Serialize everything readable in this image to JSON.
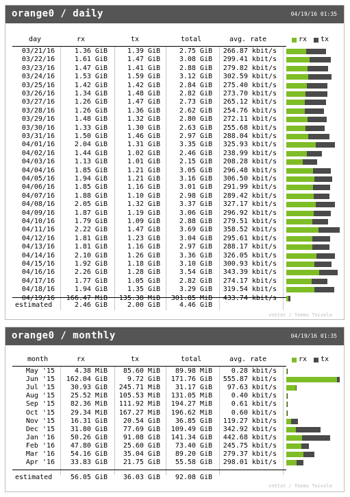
{
  "daily": {
    "title": "orange0 / daily",
    "date": "04/19/16 01:35",
    "columns": {
      "day": "day",
      "rx": "rx",
      "tx": "tx",
      "total": "total",
      "rate": "avg. rate"
    },
    "legend": {
      "rx": "rx",
      "tx": "tx"
    },
    "rows": [
      {
        "label": "03/21/16",
        "rx": "1.36 GiB",
        "tx": "1.39 GiB",
        "total": "2.75 GiB",
        "rate": "266.87 kbit/s"
      },
      {
        "label": "03/22/16",
        "rx": "1.61 GiB",
        "tx": "1.47 GiB",
        "total": "3.08 GiB",
        "rate": "299.41 kbit/s"
      },
      {
        "label": "03/23/16",
        "rx": "1.47 GiB",
        "tx": "1.41 GiB",
        "total": "2.88 GiB",
        "rate": "279.82 kbit/s"
      },
      {
        "label": "03/24/16",
        "rx": "1.53 GiB",
        "tx": "1.59 GiB",
        "total": "3.12 GiB",
        "rate": "302.59 kbit/s"
      },
      {
        "label": "03/25/16",
        "rx": "1.42 GiB",
        "tx": "1.42 GiB",
        "total": "2.84 GiB",
        "rate": "275.40 kbit/s"
      },
      {
        "label": "03/26/16",
        "rx": "1.34 GiB",
        "tx": "1.48 GiB",
        "total": "2.82 GiB",
        "rate": "273.70 kbit/s"
      },
      {
        "label": "03/27/16",
        "rx": "1.26 GiB",
        "tx": "1.47 GiB",
        "total": "2.73 GiB",
        "rate": "265.12 kbit/s"
      },
      {
        "label": "03/28/16",
        "rx": "1.26 GiB",
        "tx": "1.36 GiB",
        "total": "2.62 GiB",
        "rate": "254.76 kbit/s"
      },
      {
        "label": "03/29/16",
        "rx": "1.48 GiB",
        "tx": "1.32 GiB",
        "total": "2.80 GiB",
        "rate": "272.11 kbit/s"
      },
      {
        "label": "03/30/16",
        "rx": "1.33 GiB",
        "tx": "1.30 GiB",
        "total": "2.63 GiB",
        "rate": "255.68 kbit/s"
      },
      {
        "label": "03/31/16",
        "rx": "1.50 GiB",
        "tx": "1.46 GiB",
        "total": "2.97 GiB",
        "rate": "288.04 kbit/s"
      },
      {
        "label": "04/01/16",
        "rx": "2.04 GiB",
        "tx": "1.31 GiB",
        "total": "3.35 GiB",
        "rate": "325.93 kbit/s"
      },
      {
        "label": "04/02/16",
        "rx": "1.44 GiB",
        "tx": "1.02 GiB",
        "total": "2.46 GiB",
        "rate": "238.99 kbit/s"
      },
      {
        "label": "04/03/16",
        "rx": "1.13 GiB",
        "tx": "1.01 GiB",
        "total": "2.15 GiB",
        "rate": "208.28 kbit/s"
      },
      {
        "label": "04/04/16",
        "rx": "1.85 GiB",
        "tx": "1.21 GiB",
        "total": "3.05 GiB",
        "rate": "296.48 kbit/s"
      },
      {
        "label": "04/05/16",
        "rx": "1.94 GiB",
        "tx": "1.21 GiB",
        "total": "3.16 GiB",
        "rate": "306.50 kbit/s"
      },
      {
        "label": "04/06/16",
        "rx": "1.85 GiB",
        "tx": "1.16 GiB",
        "total": "3.01 GiB",
        "rate": "291.99 kbit/s"
      },
      {
        "label": "04/07/16",
        "rx": "1.88 GiB",
        "tx": "1.10 GiB",
        "total": "2.98 GiB",
        "rate": "289.42 kbit/s"
      },
      {
        "label": "04/08/16",
        "rx": "2.05 GiB",
        "tx": "1.32 GiB",
        "total": "3.37 GiB",
        "rate": "327.17 kbit/s"
      },
      {
        "label": "04/09/16",
        "rx": "1.87 GiB",
        "tx": "1.19 GiB",
        "total": "3.06 GiB",
        "rate": "296.92 kbit/s"
      },
      {
        "label": "04/10/16",
        "rx": "1.79 GiB",
        "tx": "1.09 GiB",
        "total": "2.88 GiB",
        "rate": "279.51 kbit/s"
      },
      {
        "label": "04/11/16",
        "rx": "2.22 GiB",
        "tx": "1.47 GiB",
        "total": "3.69 GiB",
        "rate": "358.52 kbit/s"
      },
      {
        "label": "04/12/16",
        "rx": "1.81 GiB",
        "tx": "1.23 GiB",
        "total": "3.04 GiB",
        "rate": "295.61 kbit/s"
      },
      {
        "label": "04/13/16",
        "rx": "1.81 GiB",
        "tx": "1.16 GiB",
        "total": "2.97 GiB",
        "rate": "288.17 kbit/s"
      },
      {
        "label": "04/14/16",
        "rx": "2.10 GiB",
        "tx": "1.26 GiB",
        "total": "3.36 GiB",
        "rate": "326.05 kbit/s"
      },
      {
        "label": "04/15/16",
        "rx": "1.92 GiB",
        "tx": "1.18 GiB",
        "total": "3.10 GiB",
        "rate": "300.93 kbit/s"
      },
      {
        "label": "04/16/16",
        "rx": "2.26 GiB",
        "tx": "1.28 GiB",
        "total": "3.54 GiB",
        "rate": "343.39 kbit/s"
      },
      {
        "label": "04/17/16",
        "rx": "1.77 GiB",
        "tx": "1.05 GiB",
        "total": "2.82 GiB",
        "rate": "274.17 kbit/s"
      },
      {
        "label": "04/18/16",
        "rx": "1.94 GiB",
        "tx": "1.35 GiB",
        "total": "3.29 GiB",
        "rate": "319.54 kbit/s"
      },
      {
        "label": "04/19/16",
        "rx": "166.47 MiB",
        "tx": "135.38 MiB",
        "total": "301.85 MiB",
        "rate": "433.74 kbit/s"
      }
    ],
    "bars": [
      [
        1.36,
        1.39
      ],
      [
        1.61,
        1.47
      ],
      [
        1.47,
        1.41
      ],
      [
        1.53,
        1.59
      ],
      [
        1.42,
        1.42
      ],
      [
        1.34,
        1.48
      ],
      [
        1.26,
        1.47
      ],
      [
        1.26,
        1.36
      ],
      [
        1.48,
        1.32
      ],
      [
        1.33,
        1.3
      ],
      [
        1.5,
        1.46
      ],
      [
        2.04,
        1.31
      ],
      [
        1.44,
        1.02
      ],
      [
        1.13,
        1.01
      ],
      [
        1.85,
        1.21
      ],
      [
        1.94,
        1.21
      ],
      [
        1.85,
        1.16
      ],
      [
        1.88,
        1.1
      ],
      [
        2.05,
        1.32
      ],
      [
        1.87,
        1.19
      ],
      [
        1.79,
        1.09
      ],
      [
        2.22,
        1.47
      ],
      [
        1.81,
        1.23
      ],
      [
        1.81,
        1.16
      ],
      [
        2.1,
        1.26
      ],
      [
        1.92,
        1.18
      ],
      [
        2.26,
        1.28
      ],
      [
        1.77,
        1.05
      ],
      [
        1.94,
        1.35
      ],
      [
        0.1626,
        0.1322
      ]
    ],
    "estimated": {
      "label": "estimated",
      "rx": "2.46 GiB",
      "tx": "2.00 GiB",
      "total": "4.46 GiB"
    },
    "credit": "vnStat / Teemu Toivola",
    "colors": {
      "rx": "#7ebd26",
      "tx": "#4a4a4a",
      "header": "#555555"
    }
  },
  "monthly": {
    "title": "orange0 / monthly",
    "date": "04/19/16 01:35",
    "columns": {
      "month": "month",
      "rx": "rx",
      "tx": "tx",
      "total": "total",
      "rate": "avg. rate"
    },
    "legend": {
      "rx": "rx",
      "tx": "tx"
    },
    "rows": [
      {
        "label": "May '15",
        "rx": "4.38 MiB",
        "tx": "85.60 MiB",
        "total": "89.98 MiB",
        "rate": "0.28 kbit/s"
      },
      {
        "label": "Jun '15",
        "rx": "162.04 GiB",
        "tx": "9.72 GiB",
        "total": "171.76 GiB",
        "rate": "555.87 kbit/s"
      },
      {
        "label": "Jul '15",
        "rx": "30.93 GiB",
        "tx": "245.71 MiB",
        "total": "31.17 GiB",
        "rate": "97.63 kbit/s"
      },
      {
        "label": "Aug '15",
        "rx": "25.52 MiB",
        "tx": "105.53 MiB",
        "total": "131.05 MiB",
        "rate": "0.40 kbit/s"
      },
      {
        "label": "Sep '15",
        "rx": "82.36 MiB",
        "tx": "111.92 MiB",
        "total": "194.27 MiB",
        "rate": "0.61 kbit/s"
      },
      {
        "label": "Oct '15",
        "rx": "29.34 MiB",
        "tx": "167.27 MiB",
        "total": "196.62 MiB",
        "rate": "0.60 kbit/s"
      },
      {
        "label": "Nov '15",
        "rx": "16.31 GiB",
        "tx": "20.54 GiB",
        "total": "36.85 GiB",
        "rate": "119.27 kbit/s"
      },
      {
        "label": "Dec '15",
        "rx": "31.80 GiB",
        "tx": "77.69 GiB",
        "total": "109.49 GiB",
        "rate": "342.92 kbit/s"
      },
      {
        "label": "Jan '16",
        "rx": "50.26 GiB",
        "tx": "91.08 GiB",
        "total": "141.34 GiB",
        "rate": "442.68 kbit/s"
      },
      {
        "label": "Feb '16",
        "rx": "47.80 GiB",
        "tx": "25.60 GiB",
        "total": "73.40 GiB",
        "rate": "245.75 kbit/s"
      },
      {
        "label": "Mar '16",
        "rx": "54.16 GiB",
        "tx": "35.04 GiB",
        "total": "89.20 GiB",
        "rate": "279.37 kbit/s"
      },
      {
        "label": "Apr '16",
        "rx": "33.83 GiB",
        "tx": "21.75 GiB",
        "total": "55.58 GiB",
        "rate": "298.01 kbit/s"
      }
    ],
    "bars": [
      [
        0.0043,
        0.0836
      ],
      [
        162.04,
        9.72
      ],
      [
        30.93,
        0.24
      ],
      [
        0.025,
        0.103
      ],
      [
        0.08,
        0.109
      ],
      [
        0.029,
        0.163
      ],
      [
        16.31,
        20.54
      ],
      [
        31.8,
        77.69
      ],
      [
        50.26,
        91.08
      ],
      [
        47.8,
        25.6
      ],
      [
        54.16,
        35.04
      ],
      [
        33.83,
        21.75
      ]
    ],
    "estimated": {
      "label": "estimated",
      "rx": "56.05 GiB",
      "tx": "36.03 GiB",
      "total": "92.08 GiB"
    },
    "credit": "vnStat / Teemu Toivola",
    "colors": {
      "rx": "#7ebd26",
      "tx": "#4a4a4a",
      "header": "#555555"
    }
  }
}
